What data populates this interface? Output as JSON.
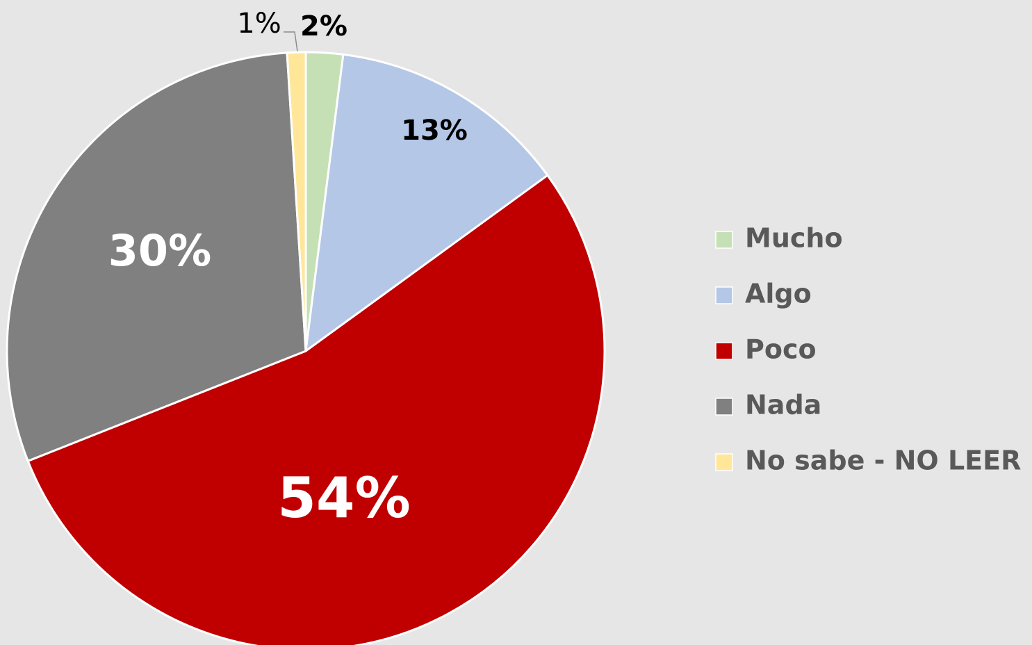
{
  "chart_data": {
    "type": "pie",
    "categories": [
      "Mucho",
      "Algo",
      "Poco",
      "Nada",
      "No sabe - NO LEER"
    ],
    "values": [
      2,
      13,
      54,
      30,
      1
    ],
    "value_labels": [
      "2%",
      "13%",
      "54%",
      "30%",
      "1%"
    ],
    "colors": [
      "#c5e0b4",
      "#b4c7e7",
      "#c00000",
      "#808080",
      "#ffe699"
    ],
    "legend": "right"
  }
}
